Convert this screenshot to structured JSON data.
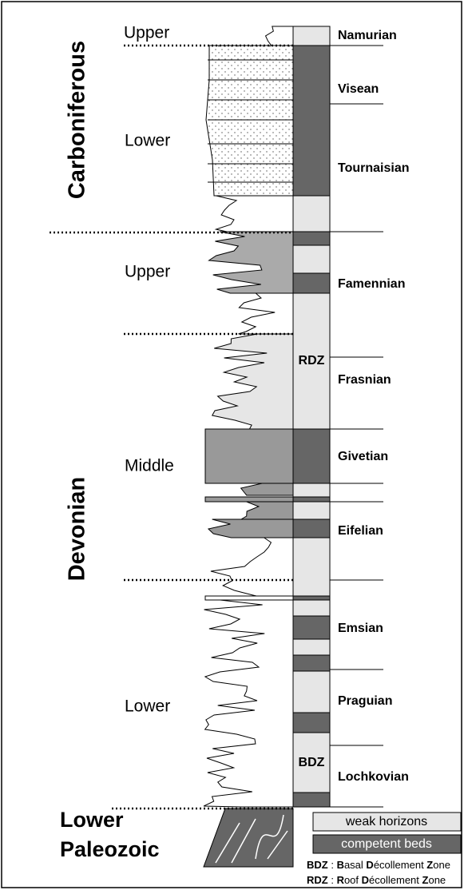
{
  "periods": [
    "Carboniferous",
    "Devonian"
  ],
  "basement": [
    "Lower",
    "Paleozoic"
  ],
  "series": [
    "Upper",
    "Lower",
    "Upper",
    "Middle",
    "Lower"
  ],
  "stages": [
    "Namurian",
    "Visean",
    "Tournaisian",
    "Famennian",
    "Frasnian",
    "Givetian",
    "Eifelian",
    "Emsian",
    "Praguian",
    "Lochkovian"
  ],
  "zones": [
    "RDZ",
    "BDZ"
  ],
  "legend": [
    "weak horizons",
    "competent beds"
  ],
  "notes": [
    [
      "BDZ",
      " : ",
      "B",
      "asal ",
      "D",
      "écollement ",
      "Z",
      "one"
    ],
    [
      "RDZ",
      " : ",
      "R",
      "oof ",
      "D",
      "écollement ",
      "Z",
      "one"
    ]
  ]
}
